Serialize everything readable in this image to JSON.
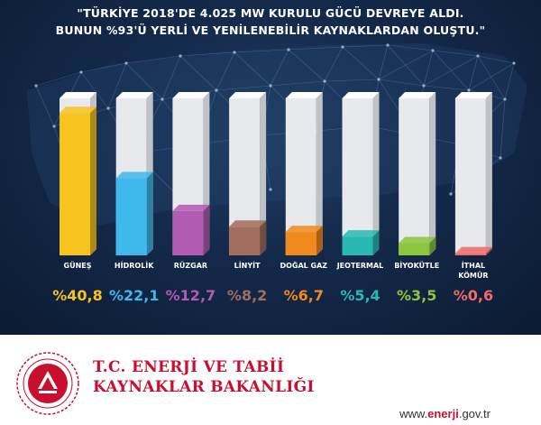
{
  "header": {
    "title_line1": "\"TÜRKİYE 2018'DE 4.025 MW KURULU GÜCÜ DEVREYE ALDI.",
    "title_line2": "BUNUN %93'Ü YERLİ VE YENİLENEBİLİR KAYNAKLARDAN OLUŞTU.\""
  },
  "chart_data": {
    "type": "bar",
    "title": "\"TÜRKİYE 2018'DE 4.025 MW KURULU GÜCÜ DEVREYE ALDI. BUNUN %93'Ü YERLİ VE YENİLENEBİLİR KAYNAKLARDAN OLUŞTU.\"",
    "categories": [
      "GÜNEŞ",
      "HİDROLİK",
      "RÜZGAR",
      "LİNYİT",
      "DOĞAL GAZ",
      "JEOTERMAL",
      "BİYOKÜTLE",
      "İTHAL KÖMÜR"
    ],
    "values": [
      40.8,
      22.1,
      12.7,
      8.2,
      6.7,
      5.4,
      3.5,
      0.6
    ],
    "value_labels": [
      "%40,8",
      "%22,1",
      "%12,7",
      "%8,2",
      "%6,7",
      "%5,4",
      "%3,5",
      "%0,6"
    ],
    "colors": [
      "#f7c31f",
      "#3fb8ec",
      "#b15bb2",
      "#a16d5c",
      "#f08a1d",
      "#2ab8b2",
      "#8cc63f",
      "#f06a6a"
    ],
    "ylim": [
      0,
      45
    ],
    "grid": false,
    "legend": "none",
    "xlabel": "",
    "ylabel": ""
  },
  "footer": {
    "ministry_line1": "T.C. ENERJİ VE TABİİ",
    "ministry_line2": "KAYNAKLAR BAKANLIĞI",
    "website_prefix": "www.",
    "website_brand": "enerji",
    "website_suffix": ".gov.tr"
  }
}
